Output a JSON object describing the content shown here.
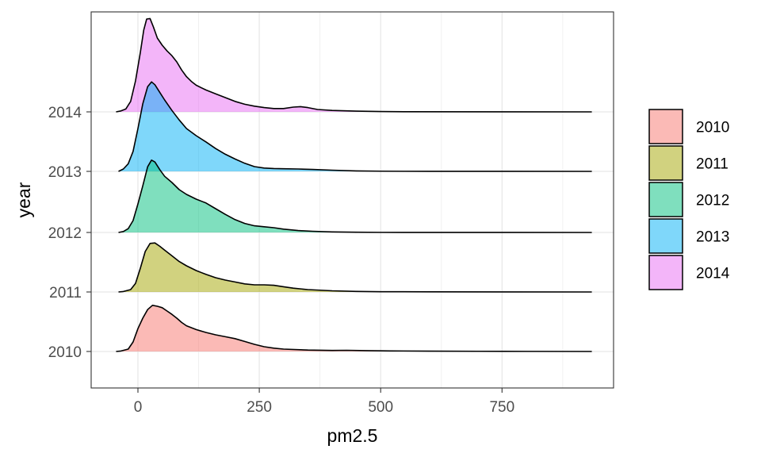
{
  "chart_data": {
    "type": "area",
    "subtype": "ridgeline-density",
    "xlabel": "pm2.5",
    "ylabel": "year",
    "xlim": [
      -82,
      1000
    ],
    "x_ticks": [
      0,
      250,
      500,
      750
    ],
    "x_tick_labels": [
      "0",
      "250",
      "500",
      "750"
    ],
    "x_minor_ticks": [
      125,
      375,
      625,
      875
    ],
    "categories": [
      "2010",
      "2011",
      "2012",
      "2013",
      "2014"
    ],
    "grid": true,
    "legend_position": "right",
    "legend_title": "",
    "series": [
      {
        "name": "2010",
        "color": "#F8766D",
        "points": [
          [
            -45,
            0.0
          ],
          [
            -35,
            0.01
          ],
          [
            -20,
            0.05
          ],
          [
            -10,
            0.2
          ],
          [
            0,
            0.48
          ],
          [
            10,
            0.7
          ],
          [
            20,
            0.88
          ],
          [
            30,
            0.97
          ],
          [
            40,
            0.95
          ],
          [
            50,
            0.92
          ],
          [
            60,
            0.85
          ],
          [
            70,
            0.78
          ],
          [
            80,
            0.7
          ],
          [
            90,
            0.61
          ],
          [
            100,
            0.54
          ],
          [
            120,
            0.46
          ],
          [
            140,
            0.4
          ],
          [
            160,
            0.35
          ],
          [
            180,
            0.31
          ],
          [
            200,
            0.27
          ],
          [
            220,
            0.21
          ],
          [
            240,
            0.15
          ],
          [
            260,
            0.1
          ],
          [
            280,
            0.07
          ],
          [
            300,
            0.05
          ],
          [
            350,
            0.03
          ],
          [
            400,
            0.022
          ],
          [
            430,
            0.025
          ],
          [
            470,
            0.018
          ],
          [
            520,
            0.012
          ],
          [
            600,
            0.007
          ],
          [
            700,
            0.004
          ],
          [
            800,
            0.002
          ],
          [
            935,
            0.0
          ]
        ]
      },
      {
        "name": "2011",
        "color": "#A3A500",
        "points": [
          [
            -40,
            0.0
          ],
          [
            -30,
            0.01
          ],
          [
            -15,
            0.05
          ],
          [
            -5,
            0.18
          ],
          [
            5,
            0.5
          ],
          [
            15,
            0.85
          ],
          [
            25,
            1.02
          ],
          [
            35,
            1.03
          ],
          [
            45,
            0.96
          ],
          [
            55,
            0.88
          ],
          [
            70,
            0.76
          ],
          [
            85,
            0.64
          ],
          [
            100,
            0.55
          ],
          [
            120,
            0.45
          ],
          [
            140,
            0.37
          ],
          [
            160,
            0.3
          ],
          [
            180,
            0.25
          ],
          [
            200,
            0.21
          ],
          [
            220,
            0.17
          ],
          [
            240,
            0.15
          ],
          [
            260,
            0.15
          ],
          [
            280,
            0.14
          ],
          [
            300,
            0.11
          ],
          [
            320,
            0.08
          ],
          [
            350,
            0.05
          ],
          [
            400,
            0.025
          ],
          [
            450,
            0.012
          ],
          [
            500,
            0.006
          ],
          [
            600,
            0.003
          ],
          [
            935,
            0.0
          ]
        ]
      },
      {
        "name": "2012",
        "color": "#00BF7D",
        "points": [
          [
            -40,
            0.0
          ],
          [
            -30,
            0.02
          ],
          [
            -20,
            0.08
          ],
          [
            -10,
            0.25
          ],
          [
            0,
            0.6
          ],
          [
            10,
            0.98
          ],
          [
            20,
            1.38
          ],
          [
            28,
            1.52
          ],
          [
            35,
            1.48
          ],
          [
            45,
            1.32
          ],
          [
            55,
            1.18
          ],
          [
            70,
            1.05
          ],
          [
            85,
            0.9
          ],
          [
            100,
            0.8
          ],
          [
            120,
            0.7
          ],
          [
            140,
            0.62
          ],
          [
            160,
            0.5
          ],
          [
            180,
            0.38
          ],
          [
            200,
            0.27
          ],
          [
            220,
            0.19
          ],
          [
            240,
            0.14
          ],
          [
            260,
            0.12
          ],
          [
            280,
            0.1
          ],
          [
            300,
            0.07
          ],
          [
            330,
            0.04
          ],
          [
            360,
            0.025
          ],
          [
            400,
            0.012
          ],
          [
            450,
            0.005
          ],
          [
            500,
            0.002
          ],
          [
            600,
            0.001
          ],
          [
            935,
            0.0
          ]
        ]
      },
      {
        "name": "2013",
        "color": "#00B0F6",
        "points": [
          [
            -40,
            0.0
          ],
          [
            -30,
            0.05
          ],
          [
            -20,
            0.16
          ],
          [
            -10,
            0.42
          ],
          [
            0,
            0.9
          ],
          [
            10,
            1.42
          ],
          [
            20,
            1.78
          ],
          [
            28,
            1.88
          ],
          [
            35,
            1.82
          ],
          [
            45,
            1.66
          ],
          [
            55,
            1.5
          ],
          [
            70,
            1.28
          ],
          [
            85,
            1.08
          ],
          [
            100,
            0.9
          ],
          [
            120,
            0.75
          ],
          [
            140,
            0.62
          ],
          [
            160,
            0.48
          ],
          [
            180,
            0.36
          ],
          [
            200,
            0.26
          ],
          [
            220,
            0.17
          ],
          [
            240,
            0.1
          ],
          [
            260,
            0.07
          ],
          [
            280,
            0.06
          ],
          [
            300,
            0.055
          ],
          [
            330,
            0.05
          ],
          [
            360,
            0.04
          ],
          [
            400,
            0.025
          ],
          [
            450,
            0.01
          ],
          [
            500,
            0.004
          ],
          [
            550,
            0.002
          ],
          [
            600,
            0.001
          ],
          [
            935,
            0.0
          ]
        ]
      },
      {
        "name": "2014",
        "color": "#E76BF3",
        "points": [
          [
            -45,
            0.0
          ],
          [
            -35,
            0.02
          ],
          [
            -25,
            0.06
          ],
          [
            -15,
            0.22
          ],
          [
            -5,
            0.65
          ],
          [
            5,
            1.25
          ],
          [
            12,
            1.72
          ],
          [
            18,
            1.95
          ],
          [
            25,
            1.96
          ],
          [
            32,
            1.78
          ],
          [
            40,
            1.55
          ],
          [
            50,
            1.4
          ],
          [
            60,
            1.28
          ],
          [
            70,
            1.18
          ],
          [
            80,
            1.05
          ],
          [
            90,
            0.88
          ],
          [
            100,
            0.74
          ],
          [
            110,
            0.64
          ],
          [
            120,
            0.56
          ],
          [
            140,
            0.46
          ],
          [
            160,
            0.38
          ],
          [
            180,
            0.3
          ],
          [
            200,
            0.22
          ],
          [
            220,
            0.16
          ],
          [
            240,
            0.12
          ],
          [
            260,
            0.09
          ],
          [
            280,
            0.07
          ],
          [
            300,
            0.07
          ],
          [
            320,
            0.1
          ],
          [
            335,
            0.11
          ],
          [
            350,
            0.09
          ],
          [
            370,
            0.05
          ],
          [
            400,
            0.03
          ],
          [
            450,
            0.015
          ],
          [
            500,
            0.007
          ],
          [
            550,
            0.003
          ],
          [
            935,
            0.0
          ]
        ]
      }
    ]
  },
  "legend": {
    "items": [
      {
        "label": "2010",
        "color": "#F8766D"
      },
      {
        "label": "2011",
        "color": "#A3A500"
      },
      {
        "label": "2012",
        "color": "#00BF7D"
      },
      {
        "label": "2013",
        "color": "#00B0F6"
      },
      {
        "label": "2014",
        "color": "#E76BF3"
      }
    ]
  }
}
